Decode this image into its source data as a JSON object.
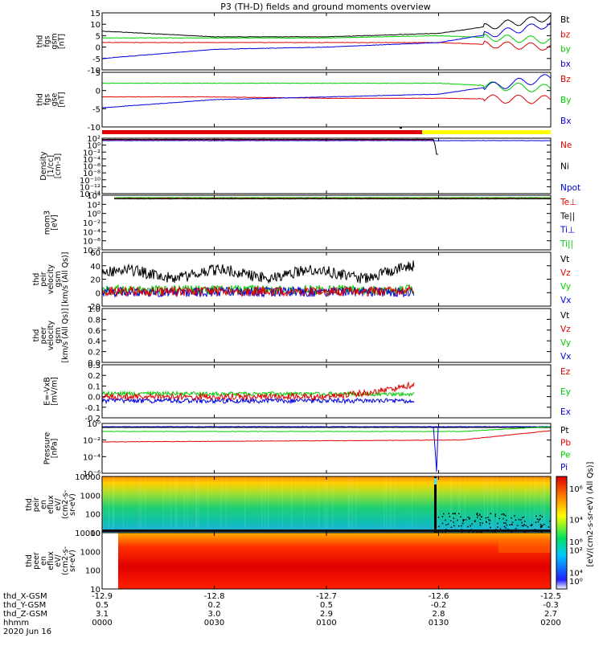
{
  "title": "P3 (TH-D) fields and ground moments overview",
  "colors": {
    "black": "#000000",
    "red": "#e00000",
    "green": "#00cc00",
    "blue": "#0000dd",
    "yellow": "#ffff00"
  },
  "panels": [
    {
      "id": "fgs",
      "ylabel": [
        "thd",
        "fgs",
        "gsm",
        "[nT]"
      ],
      "yticks": [
        "15",
        "10",
        "5",
        "0",
        "-5",
        "-10"
      ],
      "legend": [
        {
          "t": "Bt",
          "c": "black"
        },
        {
          "t": "bz",
          "c": "red"
        },
        {
          "t": "by",
          "c": "green"
        },
        {
          "t": "bx",
          "c": "blue"
        }
      ]
    },
    {
      "id": "fgl",
      "ylabel": [
        "thd",
        "fgs",
        "gse",
        "[nT]"
      ],
      "yticks": [
        "5",
        "0",
        "-5",
        "-10"
      ],
      "legend": [
        {
          "t": "Bz",
          "c": "red"
        },
        {
          "t": "By",
          "c": "green"
        },
        {
          "t": "Bx",
          "c": "blue"
        }
      ]
    },
    {
      "id": "density",
      "ylabel": [
        "Density",
        "[1/cc]",
        "[cm-3]"
      ],
      "yticks": [
        "10²",
        "10⁰",
        "10⁻²",
        "10⁻⁴",
        "10⁻⁶",
        "10⁻⁸",
        "10⁻¹⁰",
        "10⁻¹²",
        "10⁻¹⁴"
      ],
      "legend": [
        {
          "t": "Ne",
          "c": "red"
        },
        {
          "t": "Ni",
          "c": "black"
        },
        {
          "t": "Npot",
          "c": "blue"
        }
      ]
    },
    {
      "id": "temp",
      "ylabel": [
        "mom3",
        "[eV]"
      ],
      "yticks": [
        "10⁴",
        "10²",
        "10⁰",
        "10⁻²",
        "10⁻⁴",
        "10⁻⁶",
        "10⁻⁸"
      ],
      "legend": [
        {
          "t": "Te⊥",
          "c": "red"
        },
        {
          "t": "Te||",
          "c": "black"
        },
        {
          "t": "Ti⊥",
          "c": "blue"
        },
        {
          "t": "Ti||",
          "c": "green"
        }
      ]
    },
    {
      "id": "peirv",
      "ylabel": [
        "thd",
        "peir",
        "velocity",
        "gsm",
        "[km/s (All Qs)]"
      ],
      "yticks": [
        "60",
        "40",
        "20",
        "0",
        "-20"
      ],
      "legend": [
        {
          "t": "Vt",
          "c": "black"
        },
        {
          "t": "Vz",
          "c": "red"
        },
        {
          "t": "Vy",
          "c": "green"
        },
        {
          "t": "Vx",
          "c": "blue"
        }
      ]
    },
    {
      "id": "peerv",
      "ylabel": [
        "thd",
        "peer",
        "velocity",
        "gsm",
        "[km/s (All Qs)]"
      ],
      "yticks": [
        "1.0",
        "0.8",
        "0.6",
        "0.4",
        "0.2",
        "0.0"
      ],
      "legend": [
        {
          "t": "Vt",
          "c": "black"
        },
        {
          "t": "Vz",
          "c": "red"
        },
        {
          "t": "Vy",
          "c": "green"
        },
        {
          "t": "Vx",
          "c": "blue"
        }
      ]
    },
    {
      "id": "efield",
      "ylabel": [
        "E=-VxB",
        "[mV/m]"
      ],
      "yticks": [
        "0.3",
        "0.2",
        "0.1",
        "0.0",
        "-0.1",
        "-0.2"
      ],
      "legend": [
        {
          "t": "Ez",
          "c": "red"
        },
        {
          "t": "Ey",
          "c": "green"
        },
        {
          "t": "Ex",
          "c": "blue"
        }
      ]
    },
    {
      "id": "pressure",
      "ylabel": [
        "Pressure",
        "[nPa]"
      ],
      "yticks": [
        "10⁰",
        "10⁻²",
        "10⁻⁴",
        "10⁻⁶"
      ],
      "legend": [
        {
          "t": "Pt",
          "c": "black"
        },
        {
          "t": "Pb",
          "c": "red"
        },
        {
          "t": "Pe",
          "c": "green"
        },
        {
          "t": "Pi",
          "c": "blue"
        }
      ]
    },
    {
      "id": "peirspec",
      "ylabel": [
        "thd",
        "peir",
        "en",
        "eflux",
        "eV/",
        "(cm2-s-",
        "sr-eV)"
      ],
      "yticks": [
        "10000",
        "1000",
        "100",
        "10"
      ],
      "legend": []
    },
    {
      "id": "peerspec",
      "ylabel": [
        "thd",
        "peer",
        "en",
        "eflux",
        "eV/",
        "(cm2-s-",
        "sr-eV)"
      ],
      "yticks": [
        "10000",
        "1000",
        "100",
        "10"
      ],
      "legend": []
    }
  ],
  "colorbar": {
    "ticks": [
      "10⁶",
      "10⁴",
      "10²",
      "10⁰"
    ],
    "label": "[eV/(cm2-s-sr-eV) (All Qs)]"
  },
  "xaxis": {
    "row_labels": [
      "thd_X-GSM",
      "thd_Y-GSM",
      "thd_Z-GSM",
      "hhmm",
      "2020 Jun 16"
    ],
    "ticks": [
      {
        "v": [
          "-12.9",
          "0.5",
          "3.1",
          "0000"
        ]
      },
      {
        "v": [
          "-12.8",
          "0.2",
          "3.0",
          "0030"
        ]
      },
      {
        "v": [
          "-12.7",
          "0.5",
          "2.9",
          "0100"
        ]
      },
      {
        "v": [
          "-12.6",
          "-0.2",
          "2.8",
          "0130"
        ]
      },
      {
        "v": [
          "-12.5",
          "-0.3",
          "2.7",
          "0200"
        ]
      }
    ]
  },
  "chart_data": [
    {
      "type": "line",
      "title": "P3 (TH-D) fields and ground moments overview",
      "ylabel": "thd fgs gsm [nT]",
      "ylim": [
        -10,
        15
      ],
      "x": [
        "0000",
        "0030",
        "0100",
        "0130",
        "0200"
      ],
      "series": [
        {
          "name": "Bt",
          "values": [
            7,
            4.5,
            4.5,
            6,
            13
          ]
        },
        {
          "name": "bz",
          "values": [
            2,
            2,
            2,
            2,
            0
          ]
        },
        {
          "name": "by",
          "values": [
            4,
            4,
            4,
            5,
            3
          ]
        },
        {
          "name": "bx",
          "values": [
            -5,
            -1,
            0,
            2,
            10
          ]
        }
      ]
    },
    {
      "type": "line",
      "ylabel": "thd fgs gse [nT]",
      "ylim": [
        -12,
        8
      ],
      "x": [
        "0000",
        "0030",
        "0100",
        "0130",
        "0200"
      ],
      "series": [
        {
          "name": "Bz",
          "values": [
            -1,
            -1,
            -1.5,
            -1.5,
            -2
          ]
        },
        {
          "name": "By",
          "values": [
            4,
            4,
            4,
            4,
            2
          ]
        },
        {
          "name": "Bx",
          "values": [
            -5,
            -2,
            -1,
            0,
            6
          ]
        }
      ]
    },
    {
      "type": "line",
      "ylabel": "Density [1/cc] [cm-3]",
      "ylim": [
        "1e-14",
        "1e2"
      ],
      "series": [
        {
          "name": "Ne"
        },
        {
          "name": "Ni"
        },
        {
          "name": "Npot"
        }
      ]
    },
    {
      "type": "line",
      "ylabel": "mom3 [eV]",
      "ylim": [
        "1e-8",
        "1e4"
      ],
      "series": [
        {
          "name": "Te⊥"
        },
        {
          "name": "Te||"
        },
        {
          "name": "Ti⊥"
        },
        {
          "name": "Ti||"
        }
      ]
    },
    {
      "type": "line",
      "ylabel": "thd peir velocity gsm [km/s (All Qs)]",
      "ylim": [
        -20,
        60
      ],
      "x": [
        "0000",
        "0030",
        "0100",
        "0130"
      ],
      "series": [
        {
          "name": "Vt",
          "values": [
            28,
            30,
            32,
            40
          ]
        },
        {
          "name": "Vz",
          "values": [
            2,
            3,
            2,
            5
          ]
        },
        {
          "name": "Vy",
          "values": [
            4,
            4,
            5,
            8
          ]
        },
        {
          "name": "Vx",
          "values": [
            0,
            0,
            -1,
            2
          ]
        }
      ]
    },
    {
      "type": "line",
      "ylabel": "thd peer velocity gsm [km/s (All Qs)]",
      "ylim": [
        -0.2,
        1.0
      ],
      "series": []
    },
    {
      "type": "line",
      "ylabel": "E=-VxB [mV/m]",
      "ylim": [
        -0.2,
        0.3
      ],
      "x": [
        "0000",
        "0030",
        "0100",
        "0130"
      ],
      "series": [
        {
          "name": "Ez",
          "values": [
            0.0,
            0.0,
            0.02,
            0.2
          ]
        },
        {
          "name": "Ey",
          "values": [
            0.03,
            0.02,
            0.02,
            0.02
          ]
        },
        {
          "name": "Ex",
          "values": [
            -0.05,
            -0.04,
            -0.04,
            -0.03
          ]
        }
      ]
    },
    {
      "type": "line",
      "ylabel": "Pressure [nPa]",
      "ylim": [
        "1e-6",
        "1e0"
      ],
      "series": [
        {
          "name": "Pt"
        },
        {
          "name": "Pb"
        },
        {
          "name": "Pe"
        },
        {
          "name": "Pi"
        }
      ]
    },
    {
      "type": "heatmap",
      "ylabel": "thd peir en eflux eV/(cm2-s-sr-eV)",
      "ylim": [
        10,
        10000
      ]
    },
    {
      "type": "heatmap",
      "ylabel": "thd peer en eflux eV/(cm2-s-sr-eV)",
      "ylim": [
        10,
        10000
      ]
    }
  ]
}
